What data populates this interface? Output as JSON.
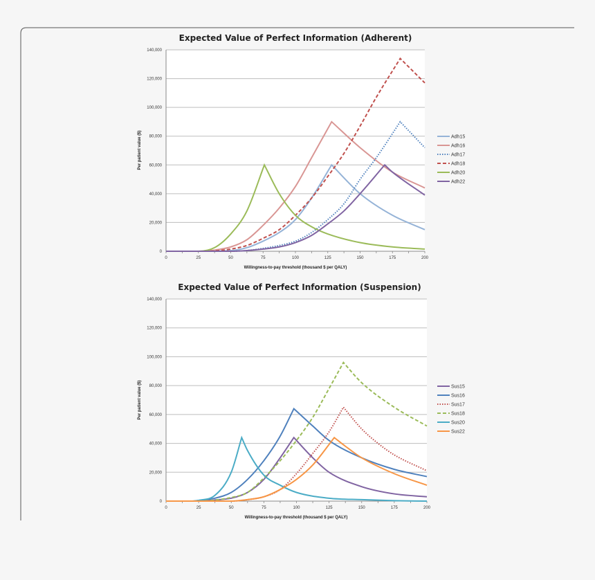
{
  "chart_data": [
    {
      "type": "line",
      "title": "Expected Value of Perfect Information  (Adherent)",
      "xlabel": "Willingness-to-pay threshold (thousand $ per QALY)",
      "ylabel": "Per patient value ($)",
      "xlim": [
        0,
        200
      ],
      "ylim": [
        0,
        140000
      ],
      "xticks": [
        "0",
        "25",
        "50",
        "75",
        "100",
        "125",
        "150",
        "175",
        "200"
      ],
      "yticks": [
        "0",
        "20,000",
        "40,000",
        "60,000",
        "80,000",
        "100,000",
        "120,000",
        "140,000"
      ],
      "grid": true,
      "legend": "right",
      "series": [
        {
          "name": "Adh15",
          "color": "#95b3d7",
          "dash": "solid",
          "peak": 128,
          "x": [
            0,
            25,
            50,
            62.5,
            75,
            87.5,
            100,
            112.5,
            128,
            150,
            175,
            200
          ],
          "y": [
            0,
            0,
            500,
            2500,
            7000,
            13000,
            22000,
            37000,
            60000,
            40000,
            25000,
            15000
          ]
        },
        {
          "name": "Adh16",
          "color": "#d99694",
          "dash": "solid",
          "peak": 128,
          "x": [
            0,
            25,
            37.5,
            50,
            62.5,
            75,
            87.5,
            100,
            112.5,
            128,
            150,
            175,
            200
          ],
          "y": [
            0,
            0,
            800,
            3000,
            8000,
            18000,
            30000,
            45000,
            65000,
            90000,
            72000,
            55000,
            44000
          ]
        },
        {
          "name": "Adh17",
          "color": "#4f81bd",
          "dash": "dotted",
          "peak": 181,
          "x": [
            0,
            50,
            62.5,
            75,
            87.5,
            100,
            112.5,
            125,
            137.5,
            150,
            162.5,
            181,
            200
          ],
          "y": [
            0,
            0,
            500,
            2000,
            4000,
            7000,
            13000,
            22000,
            33000,
            50000,
            65000,
            90000,
            72000
          ]
        },
        {
          "name": "Adh18",
          "color": "#c0504d",
          "dash": "dashed",
          "peak": 181,
          "x": [
            0,
            25,
            37.5,
            50,
            62.5,
            75,
            87.5,
            100,
            112.5,
            125,
            137.5,
            150,
            162.5,
            181,
            200
          ],
          "y": [
            0,
            0,
            300,
            1500,
            4000,
            9000,
            15000,
            25000,
            37000,
            52000,
            68000,
            87000,
            107000,
            134000,
            117000
          ]
        },
        {
          "name": "Adh20",
          "color": "#9bbb59",
          "dash": "solid",
          "peak": 76,
          "x": [
            0,
            25,
            37.5,
            50,
            62.5,
            76,
            87.5,
            100,
            112.5,
            125,
            150,
            175,
            200
          ],
          "y": [
            0,
            0,
            2500,
            12000,
            28000,
            60000,
            40000,
            25000,
            17000,
            12000,
            6000,
            3000,
            1500
          ]
        },
        {
          "name": "Adh22",
          "color": "#8064a2",
          "dash": "solid",
          "peak": 169,
          "x": [
            0,
            50,
            62.5,
            75,
            87.5,
            100,
            112.5,
            125,
            137.5,
            150,
            169,
            175,
            200
          ],
          "y": [
            0,
            0,
            500,
            1500,
            3000,
            6000,
            11000,
            19000,
            28000,
            40000,
            60000,
            55000,
            39000
          ]
        }
      ]
    },
    {
      "type": "line",
      "title": "Expected Value of Perfect Information  (Suspension)",
      "xlabel": "Willingness-to-pay threshold (thousand $ per QALY)",
      "ylabel": "Per patient value ($)",
      "xlim": [
        0,
        200
      ],
      "ylim": [
        0,
        140000
      ],
      "xticks": [
        "0",
        "25",
        "50",
        "75",
        "100",
        "125",
        "150",
        "175",
        "200"
      ],
      "yticks": [
        "0",
        "20,000",
        "40,000",
        "60,000",
        "80,000",
        "100,000",
        "120,000",
        "140,000"
      ],
      "grid": true,
      "legend": "right",
      "series": [
        {
          "name": "Sus15",
          "color": "#8064a2",
          "dash": "solid",
          "peak": 98,
          "x": [
            0,
            25,
            37.5,
            50,
            62.5,
            75,
            87.5,
            98,
            112.5,
            125,
            150,
            175,
            200
          ],
          "y": [
            0,
            0,
            800,
            2000,
            6000,
            15000,
            30000,
            44000,
            30000,
            20000,
            10000,
            5000,
            3000
          ]
        },
        {
          "name": "Sus16",
          "color": "#4f81bd",
          "dash": "solid",
          "peak": 98,
          "x": [
            0,
            20,
            25,
            37.5,
            50,
            62.5,
            75,
            87.5,
            98,
            112.5,
            125,
            150,
            175,
            200
          ],
          "y": [
            0,
            0,
            500,
            2000,
            6000,
            15000,
            28000,
            45000,
            64000,
            52000,
            42000,
            30000,
            22000,
            17000
          ]
        },
        {
          "name": "Sus17",
          "color": "#c0504d",
          "dash": "dotted",
          "peak": 136,
          "x": [
            0,
            50,
            62.5,
            75,
            87.5,
            100,
            112.5,
            125,
            136,
            150,
            162.5,
            175,
            200
          ],
          "y": [
            0,
            0,
            1000,
            3000,
            8000,
            19000,
            33000,
            48000,
            65000,
            50000,
            40000,
            32000,
            21000
          ]
        },
        {
          "name": "Sus18",
          "color": "#9bbb59",
          "dash": "dashed",
          "peak": 136,
          "x": [
            0,
            25,
            37.5,
            50,
            62.5,
            75,
            87.5,
            100,
            112.5,
            125,
            136,
            150,
            175,
            200
          ],
          "y": [
            0,
            0,
            700,
            2500,
            6000,
            16000,
            28000,
            42000,
            58000,
            78000,
            96000,
            82000,
            65000,
            52000
          ]
        },
        {
          "name": "Sus20",
          "color": "#4bacc6",
          "dash": "solid",
          "peak": 58,
          "x": [
            0,
            20,
            25,
            37.5,
            50,
            58,
            62.5,
            75,
            87.5,
            100,
            125,
            150,
            175,
            200
          ],
          "y": [
            0,
            0,
            500,
            4000,
            20000,
            44000,
            35000,
            18000,
            11000,
            6000,
            2000,
            1000,
            300,
            0
          ]
        },
        {
          "name": "Sus22",
          "color": "#f79646",
          "dash": "solid",
          "peak": 129,
          "x": [
            0,
            50,
            62.5,
            75,
            87.5,
            100,
            112.5,
            129,
            137.5,
            150,
            175,
            200
          ],
          "y": [
            0,
            0,
            1000,
            3000,
            8000,
            15000,
            25000,
            44000,
            38000,
            30000,
            19000,
            11000
          ]
        }
      ]
    }
  ]
}
